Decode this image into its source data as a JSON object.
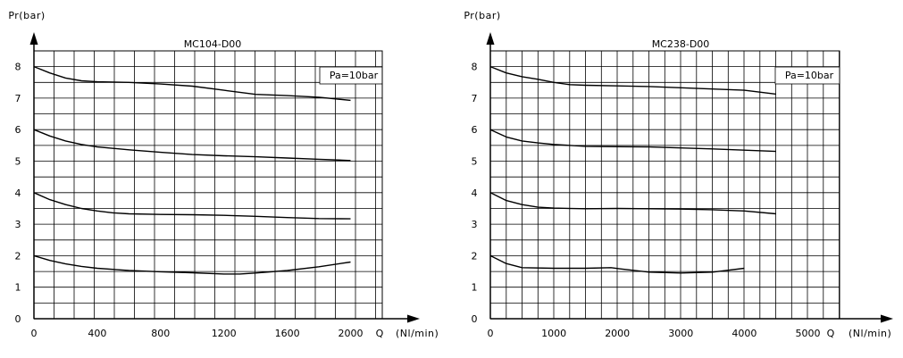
{
  "chart_data": [
    {
      "type": "line",
      "title": "MC104-D00",
      "ylabel": "Pr(bar)",
      "xlabel": "Q",
      "xunit": "(Nl/min)",
      "annotation": "Pa=10bar",
      "xlim": [
        0,
        2200
      ],
      "ylim": [
        0,
        8.5
      ],
      "x_ticks": [
        0,
        400,
        800,
        1200,
        1600,
        2000
      ],
      "y_ticks": [
        0,
        1,
        2,
        3,
        4,
        5,
        6,
        7,
        8
      ],
      "grid": true,
      "series": [
        {
          "x": [
            0,
            100,
            200,
            300,
            400,
            600,
            800,
            1000,
            1200,
            1400,
            1600,
            1800,
            2000
          ],
          "y": [
            8.0,
            7.8,
            7.64,
            7.55,
            7.52,
            7.5,
            7.45,
            7.38,
            7.25,
            7.12,
            7.08,
            7.03,
            6.93
          ]
        },
        {
          "x": [
            0,
            100,
            200,
            300,
            400,
            600,
            800,
            1000,
            1200,
            1400,
            1600,
            1800,
            2000
          ],
          "y": [
            6.0,
            5.8,
            5.64,
            5.53,
            5.45,
            5.36,
            5.28,
            5.21,
            5.17,
            5.14,
            5.1,
            5.06,
            5.02
          ]
        },
        {
          "x": [
            0,
            100,
            200,
            300,
            400,
            500,
            600,
            800,
            1000,
            1200,
            1400,
            1600,
            1800,
            2000
          ],
          "y": [
            4.0,
            3.78,
            3.62,
            3.5,
            3.42,
            3.36,
            3.33,
            3.31,
            3.3,
            3.28,
            3.25,
            3.21,
            3.18,
            3.17
          ]
        },
        {
          "x": [
            0,
            100,
            200,
            300,
            400,
            600,
            800,
            1000,
            1200,
            1300,
            1400,
            1600,
            1800,
            2000
          ],
          "y": [
            2.0,
            1.85,
            1.74,
            1.66,
            1.6,
            1.53,
            1.49,
            1.46,
            1.42,
            1.42,
            1.45,
            1.53,
            1.65,
            1.8
          ]
        }
      ]
    },
    {
      "type": "line",
      "title": "MC238-D00",
      "ylabel": "Pr(bar)",
      "xlabel": "Q",
      "xunit": "(Nl/min)",
      "annotation": "Pa=10bar",
      "xlim": [
        0,
        5500
      ],
      "ylim": [
        0,
        8.5
      ],
      "x_ticks": [
        0,
        1000,
        2000,
        3000,
        4000,
        5000
      ],
      "y_ticks": [
        0,
        1,
        2,
        3,
        4,
        5,
        6,
        7,
        8
      ],
      "grid": true,
      "series": [
        {
          "x": [
            0,
            250,
            500,
            750,
            1000,
            1250,
            1500,
            2000,
            2500,
            3000,
            3500,
            4000,
            4500
          ],
          "y": [
            8.0,
            7.8,
            7.68,
            7.6,
            7.5,
            7.43,
            7.41,
            7.39,
            7.37,
            7.33,
            7.29,
            7.25,
            7.13
          ]
        },
        {
          "x": [
            0,
            250,
            500,
            750,
            1000,
            1500,
            2000,
            2500,
            3000,
            3500,
            4000,
            4500
          ],
          "y": [
            6.0,
            5.77,
            5.64,
            5.58,
            5.53,
            5.47,
            5.46,
            5.45,
            5.42,
            5.39,
            5.35,
            5.31
          ]
        },
        {
          "x": [
            0,
            250,
            500,
            750,
            1000,
            1500,
            2000,
            2500,
            3000,
            3500,
            4000,
            4500
          ],
          "y": [
            4.0,
            3.75,
            3.62,
            3.54,
            3.51,
            3.49,
            3.5,
            3.49,
            3.48,
            3.46,
            3.42,
            3.33
          ]
        },
        {
          "x": [
            0,
            250,
            500,
            1000,
            1500,
            1900,
            2050,
            2500,
            3000,
            3500,
            4000
          ],
          "y": [
            2.0,
            1.75,
            1.62,
            1.6,
            1.6,
            1.62,
            1.58,
            1.48,
            1.45,
            1.48,
            1.6
          ]
        }
      ]
    }
  ]
}
